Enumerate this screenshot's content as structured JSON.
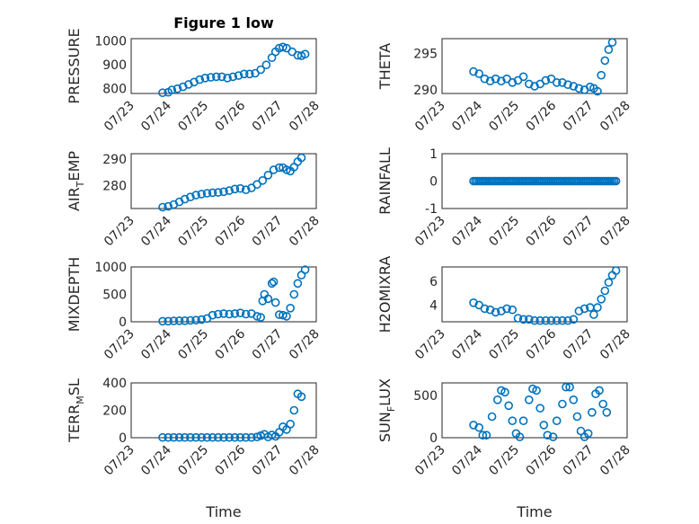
{
  "colors": {
    "marker": "#0072BD",
    "axis": "#262626"
  },
  "chart_data": [
    {
      "type": "scatter",
      "panel": "pressure",
      "title": "Figure 1 low",
      "ylabel": "PRESSURE",
      "xlabel": "",
      "xlim": [
        0,
        5
      ],
      "ylim": [
        780,
        1010
      ],
      "x_ticks": [
        0,
        1,
        2,
        3,
        4,
        5
      ],
      "x_tick_labels": [
        "07/23",
        "07/24",
        "07/25",
        "07/26",
        "07/27",
        "07/28"
      ],
      "y_ticks": [
        800,
        900,
        1000
      ],
      "y_tick_labels": [
        "800",
        "900",
        "1000"
      ],
      "grid": true,
      "minor_grid": true,
      "points": [
        [
          0.85,
          783
        ],
        [
          1.0,
          785
        ],
        [
          1.1,
          795
        ],
        [
          1.25,
          800
        ],
        [
          1.4,
          808
        ],
        [
          1.55,
          818
        ],
        [
          1.7,
          828
        ],
        [
          1.85,
          838
        ],
        [
          2.0,
          845
        ],
        [
          2.15,
          848
        ],
        [
          2.3,
          850
        ],
        [
          2.45,
          850
        ],
        [
          2.6,
          845
        ],
        [
          2.75,
          850
        ],
        [
          2.9,
          855
        ],
        [
          3.05,
          862
        ],
        [
          3.2,
          862
        ],
        [
          3.35,
          865
        ],
        [
          3.5,
          880
        ],
        [
          3.65,
          900
        ],
        [
          3.8,
          930
        ],
        [
          3.9,
          955
        ],
        [
          4.0,
          970
        ],
        [
          4.1,
          975
        ],
        [
          4.2,
          970
        ],
        [
          4.35,
          955
        ],
        [
          4.5,
          940
        ],
        [
          4.6,
          938
        ],
        [
          4.7,
          945
        ]
      ]
    },
    {
      "type": "scatter",
      "panel": "theta",
      "ylabel": "THETA",
      "xlabel": "",
      "xlim": [
        0,
        5
      ],
      "ylim": [
        289.5,
        297
      ],
      "x_ticks": [
        0,
        1,
        2,
        3,
        4,
        5
      ],
      "x_tick_labels": [
        "07/23",
        "07/24",
        "07/25",
        "07/26",
        "07/27",
        "07/28"
      ],
      "y_ticks": [
        290,
        295
      ],
      "y_tick_labels": [
        "290",
        "295"
      ],
      "grid": true,
      "minor_grid": true,
      "points": [
        [
          0.85,
          292.5
        ],
        [
          1.0,
          292.2
        ],
        [
          1.15,
          291.5
        ],
        [
          1.3,
          291.2
        ],
        [
          1.45,
          291.5
        ],
        [
          1.6,
          291.2
        ],
        [
          1.75,
          291.5
        ],
        [
          1.9,
          291.0
        ],
        [
          2.05,
          291.3
        ],
        [
          2.2,
          291.8
        ],
        [
          2.35,
          290.8
        ],
        [
          2.5,
          290.5
        ],
        [
          2.65,
          290.8
        ],
        [
          2.8,
          291.3
        ],
        [
          2.95,
          291.5
        ],
        [
          3.1,
          291.0
        ],
        [
          3.25,
          291.0
        ],
        [
          3.4,
          290.7
        ],
        [
          3.55,
          290.5
        ],
        [
          3.7,
          290.2
        ],
        [
          3.85,
          290.0
        ],
        [
          4.0,
          290.4
        ],
        [
          4.1,
          290.2
        ],
        [
          4.2,
          289.8
        ],
        [
          4.3,
          292.0
        ],
        [
          4.4,
          294.0
        ],
        [
          4.5,
          295.5
        ],
        [
          4.6,
          296.5
        ]
      ]
    },
    {
      "type": "scatter",
      "panel": "air_temp",
      "ylabel": "AIR_TEMP",
      "xlabel": "",
      "xlim": [
        0,
        5
      ],
      "ylim": [
        271.5,
        292
      ],
      "x_ticks": [
        0,
        1,
        2,
        3,
        4,
        5
      ],
      "x_tick_labels": [
        "07/23",
        "07/24",
        "07/25",
        "07/26",
        "07/27",
        "07/28"
      ],
      "y_ticks": [
        280,
        290
      ],
      "y_tick_labels": [
        "280",
        "290"
      ],
      "grid": true,
      "minor_grid": true,
      "points": [
        [
          0.85,
          272.0
        ],
        [
          1.0,
          272.3
        ],
        [
          1.15,
          273.0
        ],
        [
          1.3,
          274.0
        ],
        [
          1.45,
          275.0
        ],
        [
          1.6,
          275.8
        ],
        [
          1.75,
          276.5
        ],
        [
          1.9,
          276.9
        ],
        [
          2.05,
          277.2
        ],
        [
          2.2,
          277.4
        ],
        [
          2.35,
          277.5
        ],
        [
          2.5,
          277.8
        ],
        [
          2.65,
          278.2
        ],
        [
          2.8,
          278.8
        ],
        [
          2.95,
          279.0
        ],
        [
          3.1,
          278.5
        ],
        [
          3.25,
          279.2
        ],
        [
          3.4,
          280.5
        ],
        [
          3.55,
          282.0
        ],
        [
          3.7,
          284.0
        ],
        [
          3.85,
          286.0
        ],
        [
          4.0,
          286.8
        ],
        [
          4.1,
          286.8
        ],
        [
          4.2,
          286.0
        ],
        [
          4.3,
          285.5
        ],
        [
          4.4,
          287.0
        ],
        [
          4.5,
          289.0
        ],
        [
          4.6,
          290.5
        ]
      ]
    },
    {
      "type": "scatter",
      "panel": "rainfall",
      "ylabel": "RAINFALL",
      "xlabel": "",
      "xlim": [
        0,
        5
      ],
      "ylim": [
        -1,
        1
      ],
      "x_ticks": [
        0,
        1,
        2,
        3,
        4,
        5
      ],
      "x_tick_labels": [
        "07/23",
        "07/24",
        "07/25",
        "07/26",
        "07/27",
        "07/28"
      ],
      "y_ticks": [
        -1,
        0,
        1
      ],
      "y_tick_labels": [
        "-1",
        "0",
        "1"
      ],
      "grid": true,
      "minor_grid": true,
      "line_series": {
        "x_start": 0.85,
        "x_end": 4.7,
        "step": 0.05,
        "y": 0
      }
    },
    {
      "type": "scatter",
      "panel": "mixdepth",
      "ylabel": "MIXDEPTH",
      "xlabel": "",
      "xlim": [
        0,
        5
      ],
      "ylim": [
        0,
        1000
      ],
      "x_ticks": [
        0,
        1,
        2,
        3,
        4,
        5
      ],
      "x_tick_labels": [
        "07/23",
        "07/24",
        "07/25",
        "07/26",
        "07/27",
        "07/28"
      ],
      "y_ticks": [
        0,
        500,
        1000
      ],
      "y_tick_labels": [
        "0",
        "500",
        "1000"
      ],
      "grid": true,
      "minor_grid": true,
      "points": [
        [
          0.85,
          10
        ],
        [
          1.0,
          10
        ],
        [
          1.15,
          15
        ],
        [
          1.3,
          20
        ],
        [
          1.45,
          20
        ],
        [
          1.6,
          25
        ],
        [
          1.75,
          30
        ],
        [
          1.9,
          40
        ],
        [
          2.05,
          60
        ],
        [
          2.2,
          120
        ],
        [
          2.35,
          140
        ],
        [
          2.5,
          150
        ],
        [
          2.65,
          140
        ],
        [
          2.8,
          150
        ],
        [
          2.95,
          160
        ],
        [
          3.1,
          140
        ],
        [
          3.25,
          150
        ],
        [
          3.4,
          100
        ],
        [
          3.5,
          80
        ],
        [
          3.55,
          380
        ],
        [
          3.6,
          500
        ],
        [
          3.7,
          420
        ],
        [
          3.8,
          700
        ],
        [
          3.85,
          730
        ],
        [
          3.9,
          350
        ],
        [
          4.0,
          130
        ],
        [
          4.1,
          120
        ],
        [
          4.2,
          100
        ],
        [
          4.3,
          250
        ],
        [
          4.4,
          500
        ],
        [
          4.5,
          700
        ],
        [
          4.6,
          850
        ],
        [
          4.7,
          950
        ]
      ]
    },
    {
      "type": "scatter",
      "panel": "h2omixra",
      "ylabel": "H2OMIXRA",
      "xlabel": "",
      "xlim": [
        0,
        5
      ],
      "ylim": [
        2.6,
        7.2
      ],
      "x_ticks": [
        0,
        1,
        2,
        3,
        4,
        5
      ],
      "x_tick_labels": [
        "07/23",
        "07/24",
        "07/25",
        "07/26",
        "07/27",
        "07/28"
      ],
      "y_ticks": [
        4,
        6
      ],
      "y_tick_labels": [
        "4",
        "6"
      ],
      "grid": true,
      "minor_grid": true,
      "points": [
        [
          0.85,
          4.2
        ],
        [
          1.0,
          4.0
        ],
        [
          1.15,
          3.7
        ],
        [
          1.3,
          3.6
        ],
        [
          1.45,
          3.4
        ],
        [
          1.6,
          3.5
        ],
        [
          1.75,
          3.7
        ],
        [
          1.9,
          3.6
        ],
        [
          2.05,
          2.9
        ],
        [
          2.2,
          2.8
        ],
        [
          2.35,
          2.8
        ],
        [
          2.5,
          2.7
        ],
        [
          2.65,
          2.7
        ],
        [
          2.8,
          2.7
        ],
        [
          2.95,
          2.7
        ],
        [
          3.1,
          2.7
        ],
        [
          3.25,
          2.7
        ],
        [
          3.4,
          2.7
        ],
        [
          3.55,
          2.8
        ],
        [
          3.7,
          3.5
        ],
        [
          3.85,
          3.7
        ],
        [
          4.0,
          3.8
        ],
        [
          4.1,
          3.2
        ],
        [
          4.2,
          3.8
        ],
        [
          4.3,
          4.5
        ],
        [
          4.4,
          5.2
        ],
        [
          4.5,
          5.9
        ],
        [
          4.6,
          6.5
        ],
        [
          4.7,
          6.9
        ]
      ]
    },
    {
      "type": "scatter",
      "panel": "terr_msl",
      "ylabel": "TERR_MSL",
      "xlabel": "Time",
      "xlim": [
        0,
        5
      ],
      "ylim": [
        0,
        400
      ],
      "x_ticks": [
        0,
        1,
        2,
        3,
        4,
        5
      ],
      "x_tick_labels": [
        "07/23",
        "07/24",
        "07/25",
        "07/26",
        "07/27",
        "07/28"
      ],
      "y_ticks": [
        0,
        200,
        400
      ],
      "y_tick_labels": [
        "0",
        "200",
        "400"
      ],
      "grid": true,
      "minor_grid": true,
      "points": [
        [
          0.85,
          2
        ],
        [
          1.0,
          2
        ],
        [
          1.15,
          2
        ],
        [
          1.3,
          2
        ],
        [
          1.45,
          2
        ],
        [
          1.6,
          2
        ],
        [
          1.75,
          2
        ],
        [
          1.9,
          2
        ],
        [
          2.05,
          2
        ],
        [
          2.2,
          2
        ],
        [
          2.35,
          2
        ],
        [
          2.5,
          2
        ],
        [
          2.65,
          2
        ],
        [
          2.8,
          2
        ],
        [
          2.95,
          2
        ],
        [
          3.1,
          2
        ],
        [
          3.25,
          2
        ],
        [
          3.4,
          5
        ],
        [
          3.5,
          15
        ],
        [
          3.6,
          25
        ],
        [
          3.7,
          5
        ],
        [
          3.8,
          20
        ],
        [
          3.9,
          10
        ],
        [
          4.0,
          40
        ],
        [
          4.1,
          80
        ],
        [
          4.2,
          60
        ],
        [
          4.3,
          100
        ],
        [
          4.4,
          200
        ],
        [
          4.5,
          320
        ],
        [
          4.6,
          300
        ]
      ]
    },
    {
      "type": "scatter",
      "panel": "sun_flux",
      "ylabel": "SUN_FLUX",
      "xlabel": "Time",
      "xlim": [
        0,
        5
      ],
      "ylim": [
        0,
        650
      ],
      "x_ticks": [
        0,
        1,
        2,
        3,
        4,
        5
      ],
      "x_tick_labels": [
        "07/23",
        "07/24",
        "07/25",
        "07/26",
        "07/27",
        "07/28"
      ],
      "y_ticks": [
        0,
        500
      ],
      "y_tick_labels": [
        "0",
        "500"
      ],
      "grid": true,
      "minor_grid": true,
      "points": [
        [
          0.85,
          150
        ],
        [
          1.0,
          120
        ],
        [
          1.1,
          30
        ],
        [
          1.2,
          30
        ],
        [
          1.35,
          250
        ],
        [
          1.5,
          450
        ],
        [
          1.6,
          560
        ],
        [
          1.7,
          540
        ],
        [
          1.8,
          380
        ],
        [
          1.9,
          200
        ],
        [
          2.0,
          50
        ],
        [
          2.1,
          10
        ],
        [
          2.2,
          200
        ],
        [
          2.35,
          450
        ],
        [
          2.45,
          580
        ],
        [
          2.55,
          560
        ],
        [
          2.65,
          350
        ],
        [
          2.75,
          150
        ],
        [
          2.85,
          30
        ],
        [
          3.0,
          10
        ],
        [
          3.1,
          200
        ],
        [
          3.25,
          400
        ],
        [
          3.35,
          600
        ],
        [
          3.45,
          600
        ],
        [
          3.55,
          450
        ],
        [
          3.65,
          250
        ],
        [
          3.75,
          80
        ],
        [
          3.85,
          10
        ],
        [
          3.95,
          50
        ],
        [
          4.05,
          300
        ],
        [
          4.15,
          520
        ],
        [
          4.25,
          560
        ],
        [
          4.35,
          400
        ],
        [
          4.45,
          300
        ]
      ]
    }
  ]
}
